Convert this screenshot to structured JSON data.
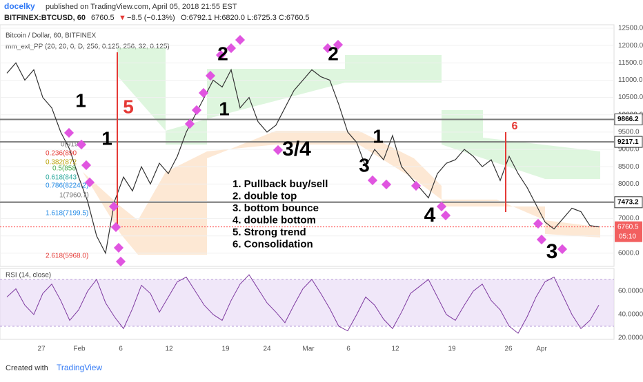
{
  "header": {
    "user": "docelky",
    "published": "published on TradingView.com, April 05, 2018 21:55 EST",
    "symbol": "BITFINEX:BTCUSD, 60",
    "last": "6760.5",
    "arrow": "▼",
    "change": "−8.5 (−0.13%)",
    "ohlc": "O:6792.1 H:6820.0 L:6725.3 C:6760.5"
  },
  "price_panel": {
    "title": "Bitcoin / Dollar, 60, BITFINEX",
    "indicator": "mm_ext_PP (20, 20, 0, D, 256, 0.125, 256, 32, 0.125)",
    "ylim": [
      5620,
      12600
    ],
    "yticks": [
      {
        "value": 6000,
        "label": "6000.0"
      },
      {
        "value": 6500,
        "label": "6500.0"
      },
      {
        "value": 7000,
        "label": "7000.0"
      },
      {
        "value": 7500,
        "label": "7500.0"
      },
      {
        "value": 8000,
        "label": "8000.0"
      },
      {
        "value": 8500,
        "label": "8500.0"
      },
      {
        "value": 9000,
        "label": "9000.0"
      },
      {
        "value": 9500,
        "label": "9500.0"
      },
      {
        "value": 10000,
        "label": "10000.0"
      },
      {
        "value": 10500,
        "label": "10500.0"
      },
      {
        "value": 11000,
        "label": "11000.0"
      },
      {
        "value": 11500,
        "label": "11500.0"
      },
      {
        "value": 12000,
        "label": "12000.0"
      },
      {
        "value": 12500,
        "label": "12500.0"
      }
    ],
    "levels": [
      {
        "value": 9866.2,
        "label": "9866.2"
      },
      {
        "value": 9217.1,
        "label": "9217.1"
      },
      {
        "value": 7473.2,
        "label": "7473.2"
      }
    ],
    "current": {
      "value": 6760.5,
      "label": "6760.5",
      "countdown": "05:10"
    },
    "close": [
      11200,
      11500,
      11000,
      11300,
      10500,
      10200,
      9500,
      9000,
      8200,
      7500,
      6500,
      6000,
      7500,
      8200,
      7800,
      8500,
      8000,
      8600,
      8300,
      8800,
      9500,
      10000,
      10500,
      11000,
      10800,
      11300,
      10200,
      10500,
      9800,
      9500,
      9700,
      10200,
      10700,
      11000,
      11300,
      11100,
      11000,
      10300,
      9500,
      9200,
      8500,
      9000,
      8700,
      9400,
      8500,
      8200,
      7900,
      7600,
      8300,
      8600,
      8700,
      9000,
      8800,
      8500,
      8700,
      8100,
      8800,
      8300,
      7900,
      7400,
      6900,
      6700,
      7000,
      7300,
      7200,
      6800,
      6760.5
    ],
    "fib_labels": [
      "0(919",
      "0.236(890",
      "0.382(872",
      "0.5(858",
      "0.618(843",
      "0.786(8224.2)",
      "1(7960.7)",
      "1.618(7199.5)",
      "2.618(5968.0)"
    ],
    "annotations": [
      "1",
      "5",
      "1",
      "2",
      "1",
      "3/4",
      "2",
      "1",
      "3",
      "4",
      "3",
      "6"
    ],
    "legend": [
      "1. Pullback buy/sell",
      "2. double top",
      "3. bottom bounce",
      "4. double bottom",
      "5. Strong trend",
      "6. Consolidation"
    ]
  },
  "rsi_panel": {
    "title": "RSI (14, close)",
    "ylim": [
      18.8,
      79.4
    ],
    "yticks": [
      {
        "value": 20,
        "label": "20.0000"
      },
      {
        "value": 40,
        "label": "40.0000"
      },
      {
        "value": 60,
        "label": "60.0000"
      }
    ],
    "band": [
      30,
      70
    ],
    "values": [
      55,
      62,
      48,
      40,
      58,
      66,
      52,
      35,
      44,
      60,
      70,
      50,
      38,
      28,
      45,
      65,
      58,
      42,
      55,
      68,
      72,
      60,
      48,
      40,
      35,
      52,
      66,
      74,
      62,
      50,
      42,
      33,
      48,
      62,
      70,
      58,
      45,
      30,
      26,
      40,
      55,
      48,
      36,
      28,
      42,
      58,
      64,
      70,
      55,
      40,
      35,
      48,
      60,
      66,
      52,
      44,
      30,
      24,
      38,
      55,
      68,
      72,
      56,
      40,
      28,
      35,
      48
    ]
  },
  "date_labels": [
    "27",
    "Feb",
    "6",
    "12",
    "19",
    "24",
    "Mar",
    "6",
    "12",
    "19",
    "26",
    "Apr"
  ],
  "footer": {
    "created": "Created with",
    "brand": "TradingView"
  }
}
